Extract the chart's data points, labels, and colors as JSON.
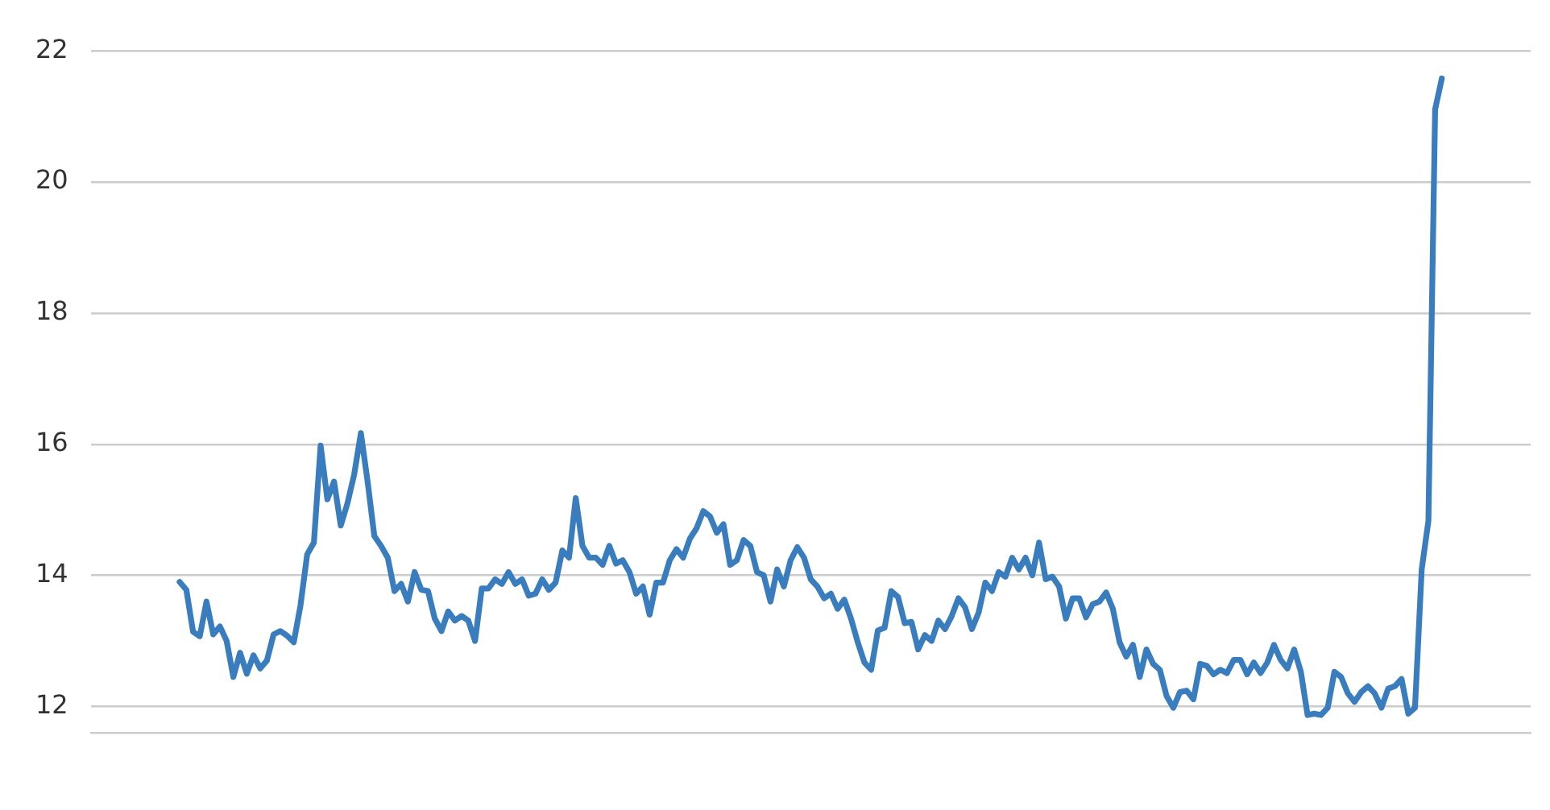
{
  "chart_data": {
    "type": "line",
    "categories": [
      null,
      null,
      null,
      null,
      null,
      null,
      null,
      null,
      null,
      null,
      null,
      null,
      null,
      null,
      null,
      null,
      null,
      null,
      null,
      null,
      null,
      null,
      null,
      null,
      null,
      null,
      null,
      null,
      null,
      null,
      null,
      null,
      null,
      null,
      null,
      null,
      null,
      null,
      null,
      null,
      null,
      null,
      null,
      null,
      null,
      null,
      null,
      null,
      null,
      null,
      null,
      null,
      null,
      null,
      null,
      null,
      null,
      null,
      null,
      null,
      null,
      null,
      null,
      null,
      null,
      null,
      null,
      null,
      null,
      null,
      null,
      null,
      null,
      null,
      null,
      null,
      null,
      null,
      null,
      null,
      null,
      null,
      null,
      null,
      null,
      null,
      null,
      null,
      null,
      null,
      null,
      null,
      null,
      null,
      null,
      null,
      null,
      null,
      null,
      null,
      null,
      null,
      null,
      null,
      null,
      null,
      null,
      null,
      null,
      null,
      null,
      null,
      null,
      null,
      null,
      null,
      null,
      null,
      null,
      null,
      null,
      null,
      null,
      null,
      null,
      null,
      null,
      null,
      null,
      null,
      null,
      null,
      null,
      null,
      null,
      null,
      null,
      null,
      null,
      null,
      null,
      null,
      null,
      null,
      null,
      null,
      null,
      null,
      null,
      null,
      null,
      null,
      null,
      null,
      null,
      null,
      null,
      null,
      null,
      null,
      null,
      null,
      null,
      null,
      null,
      null,
      null,
      null,
      null,
      null,
      null,
      null,
      null,
      null,
      null,
      null,
      null,
      null,
      null,
      null,
      null,
      null,
      null,
      null,
      null,
      null,
      null,
      null,
      null
    ],
    "series": [
      {
        "color": "#3a7dbf",
        "values": [
          13.9,
          13.78,
          13.14,
          13.07,
          13.6,
          13.1,
          13.22,
          13.0,
          12.45,
          12.82,
          12.5,
          12.78,
          12.58,
          12.7,
          13.1,
          13.15,
          13.08,
          12.98,
          13.54,
          14.32,
          14.5,
          15.98,
          15.16,
          15.43,
          14.76,
          15.1,
          15.54,
          16.17,
          15.43,
          14.6,
          14.45,
          14.27,
          13.76,
          13.87,
          13.6,
          14.05,
          13.78,
          13.76,
          13.34,
          13.15,
          13.45,
          13.31,
          13.38,
          13.31,
          13.0,
          13.8,
          13.8,
          13.94,
          13.87,
          14.05,
          13.87,
          13.94,
          13.69,
          13.72,
          13.94,
          13.78,
          13.89,
          14.38,
          14.27,
          15.18,
          14.45,
          14.27,
          14.27,
          14.16,
          14.45,
          14.18,
          14.23,
          14.05,
          13.72,
          13.83,
          13.4,
          13.89,
          13.89,
          14.23,
          14.4,
          14.27,
          14.56,
          14.72,
          14.98,
          14.9,
          14.65,
          14.78,
          14.16,
          14.23,
          14.54,
          14.45,
          14.05,
          14.0,
          13.6,
          14.09,
          13.83,
          14.23,
          14.43,
          14.27,
          13.94,
          13.83,
          13.65,
          13.72,
          13.49,
          13.63,
          13.34,
          12.98,
          12.67,
          12.56,
          13.16,
          13.2,
          13.76,
          13.67,
          13.27,
          13.29,
          12.87,
          13.09,
          13.0,
          13.31,
          13.18,
          13.38,
          13.65,
          13.51,
          13.18,
          13.43,
          13.89,
          13.76,
          14.05,
          13.98,
          14.27,
          14.09,
          14.27,
          14.0,
          14.5,
          13.94,
          13.98,
          13.83,
          13.34,
          13.65,
          13.65,
          13.36,
          13.56,
          13.6,
          13.74,
          13.49,
          12.98,
          12.76,
          12.94,
          12.45,
          12.87,
          12.65,
          12.56,
          12.16,
          11.98,
          12.22,
          12.24,
          12.11,
          12.65,
          12.62,
          12.49,
          12.56,
          12.51,
          12.71,
          12.71,
          12.49,
          12.67,
          12.51,
          12.67,
          12.94,
          12.71,
          12.58,
          12.87,
          12.53,
          11.87,
          11.89,
          11.87,
          11.98,
          12.53,
          12.45,
          12.2,
          12.07,
          12.22,
          12.31,
          12.2,
          11.98,
          12.27,
          12.31,
          12.42,
          11.89,
          11.98,
          14.09,
          14.83,
          21.11,
          21.58
        ]
      }
    ],
    "ylim": [
      11.6,
      22
    ],
    "yticks": [
      12,
      14,
      16,
      18,
      20,
      22
    ],
    "grid": "y",
    "tick_labels": "y",
    "marker": "none",
    "line_style": "solid",
    "legend": false
  }
}
